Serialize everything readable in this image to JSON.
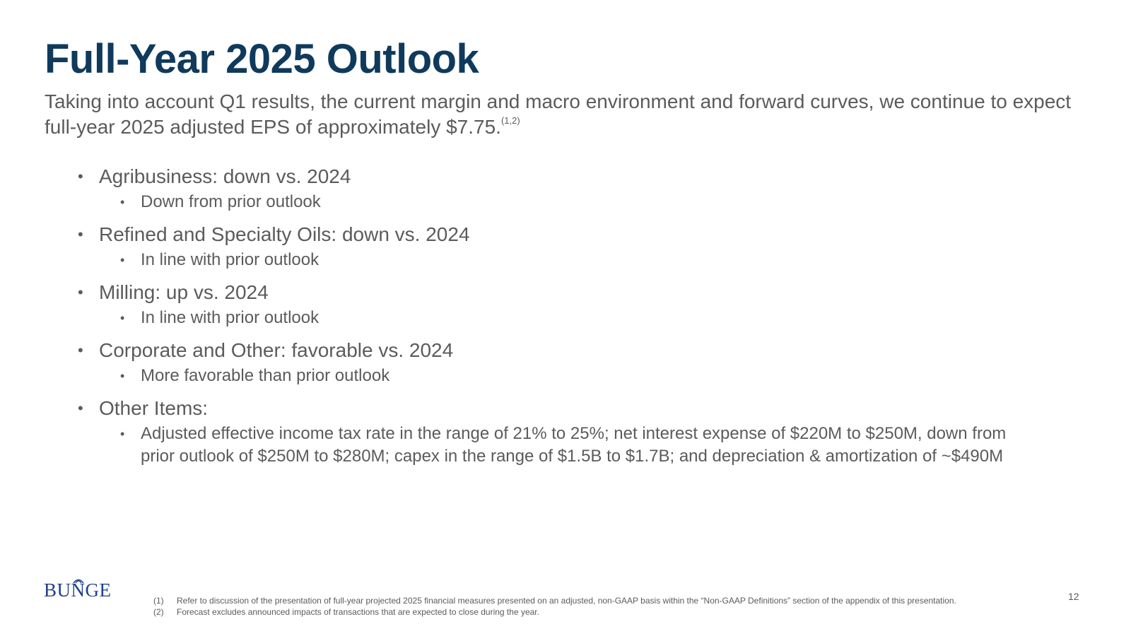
{
  "slide": {
    "title": "Full-Year 2025 Outlook",
    "subtitle": "Taking into account Q1 results, the current margin and macro environment and forward curves, we continue to expect full-year 2025 adjusted EPS of approximately $7.75.",
    "subtitle_footnote_ref": "(1,2)",
    "bullet_glyph": "•",
    "bullets": [
      {
        "text": "Agribusiness: down vs. 2024",
        "sub": "Down from prior outlook"
      },
      {
        "text": "Refined and Specialty Oils: down vs. 2024",
        "sub": "In line with prior outlook"
      },
      {
        "text": "Milling: up vs. 2024",
        "sub": "In line with prior outlook"
      },
      {
        "text": "Corporate and Other: favorable vs. 2024",
        "sub": "More favorable than prior outlook"
      },
      {
        "text": "Other Items:",
        "sub": "Adjusted effective income tax rate in the range of 21% to 25%; net interest expense of $220M to $250M, down from prior outlook of $250M to $280M; capex in the range of $1.5B to $1.7B; and depreciation & amortization of ~$490M"
      }
    ]
  },
  "logo": {
    "text": "BUNGE",
    "color": "#1f3f8c"
  },
  "footnotes": [
    {
      "num": "(1)",
      "text": "Refer to discussion of the presentation of full-year projected 2025 financial measures presented on an adjusted, non-GAAP basis within the “Non-GAAP Definitions” section of the appendix of this presentation."
    },
    {
      "num": "(2)",
      "text": "Forecast excludes announced impacts of transactions that are expected to close during the year."
    }
  ],
  "page_number": "12",
  "colors": {
    "title": "#0f3a5c",
    "body_text": "#5b5b5b",
    "background": "#ffffff"
  }
}
